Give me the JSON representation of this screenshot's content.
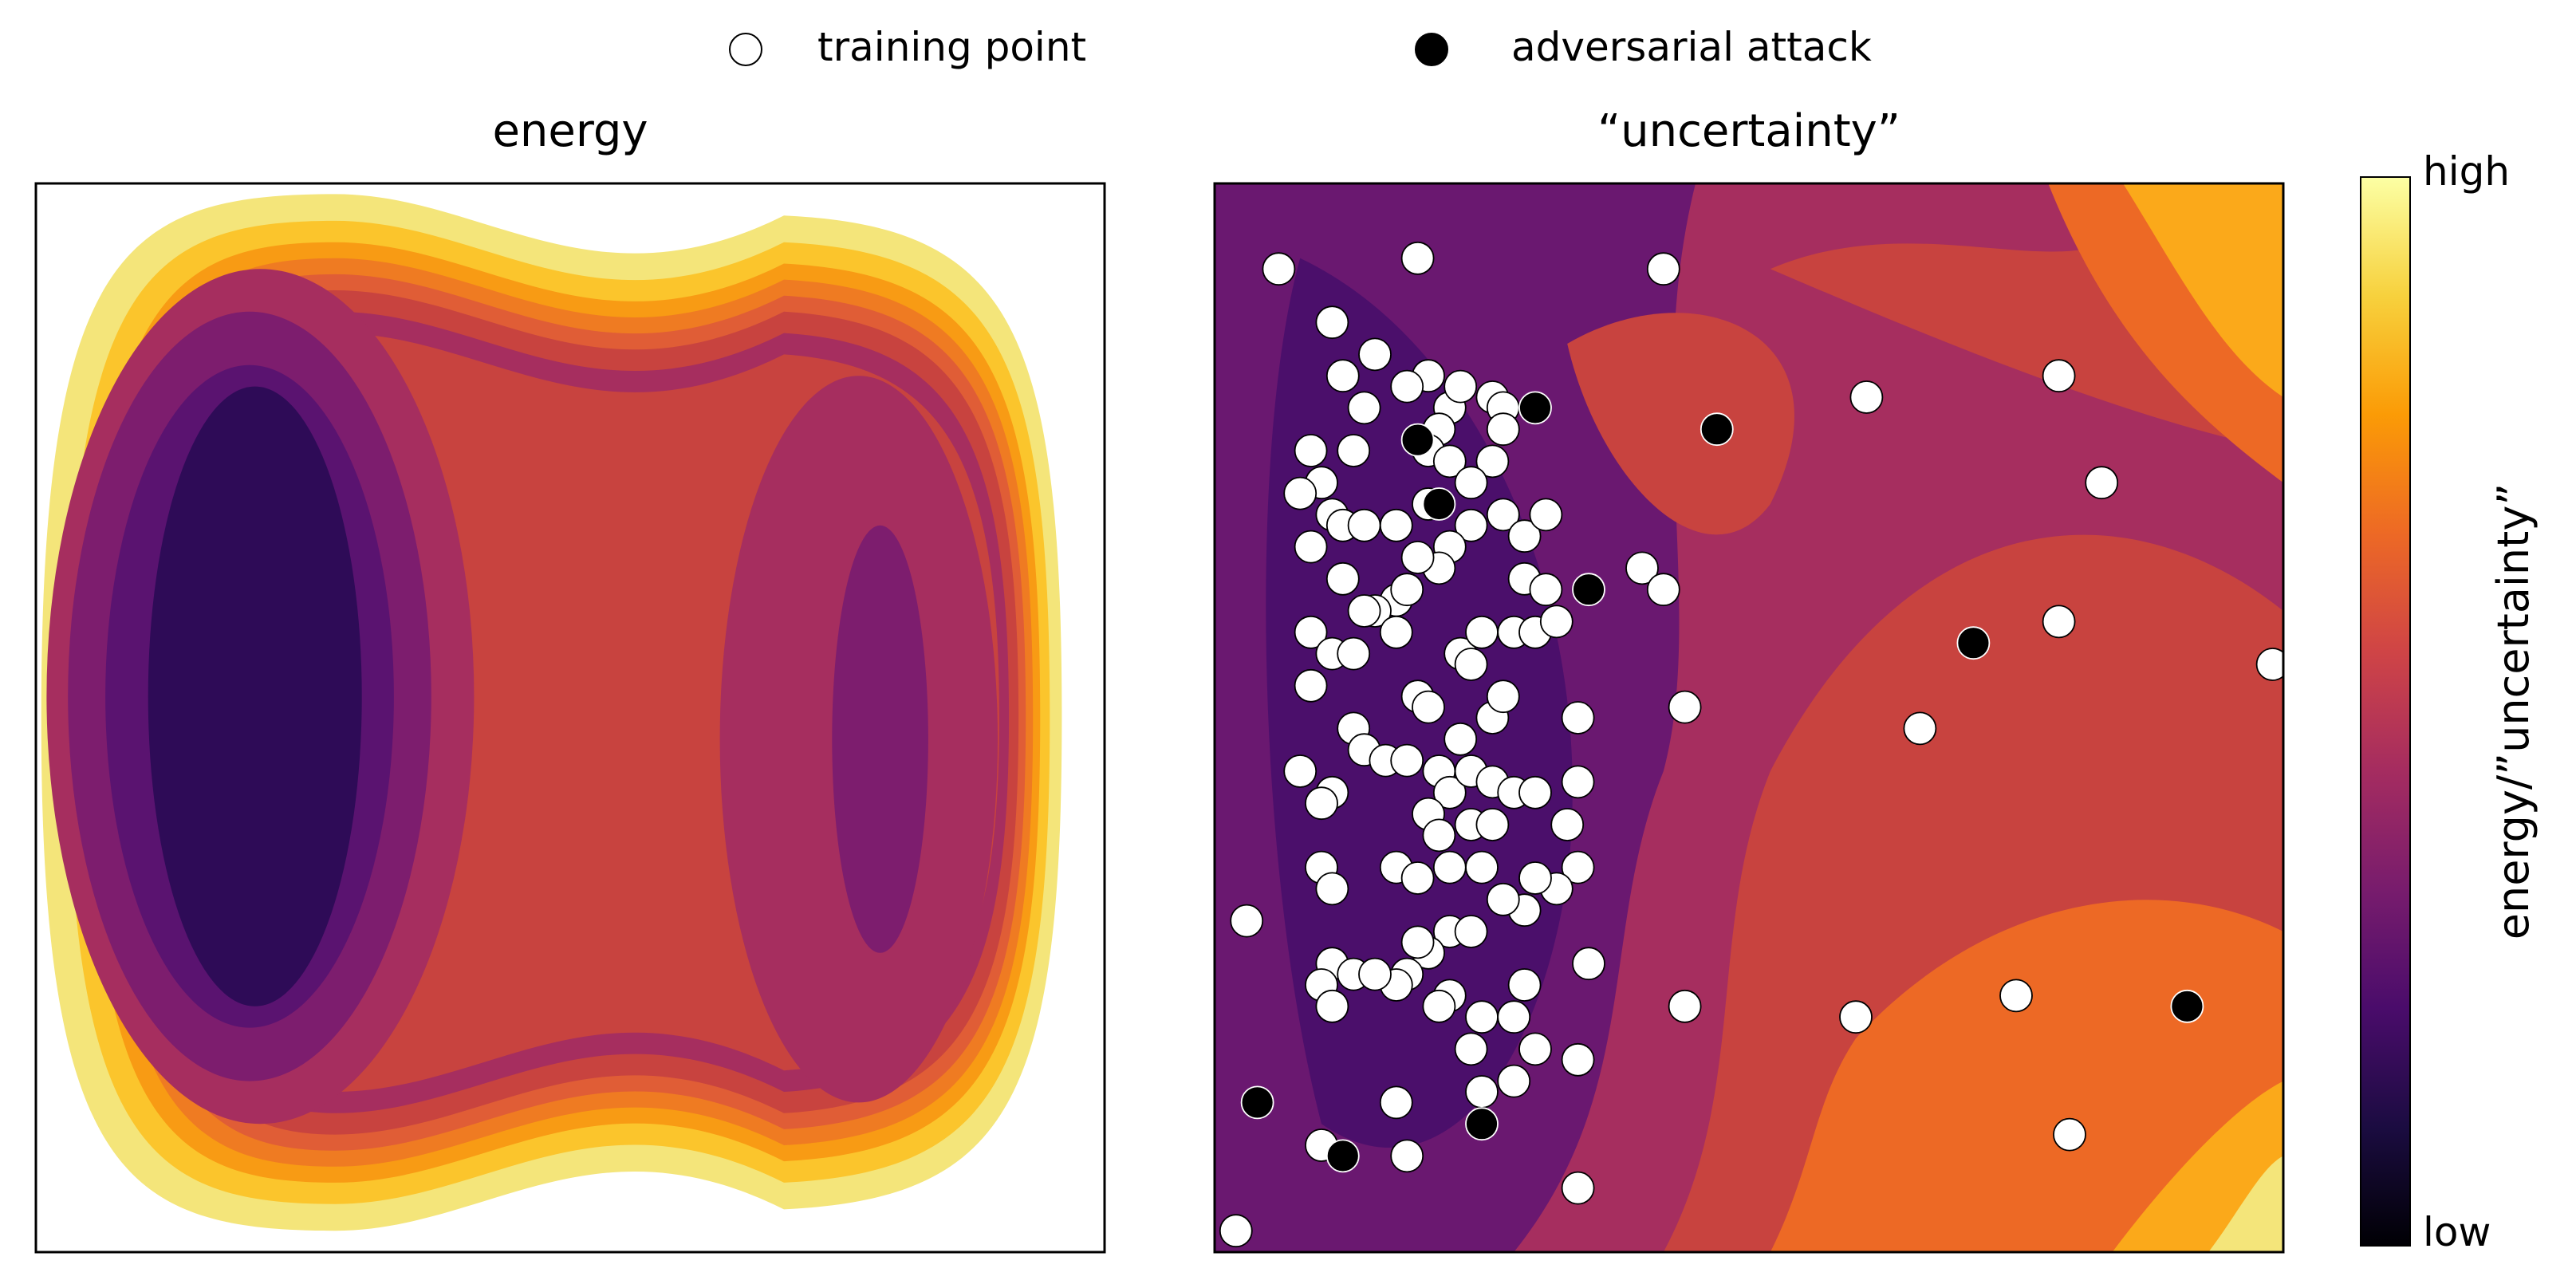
{
  "legend": {
    "items": [
      {
        "label": "training point",
        "marker": "open-circle",
        "color": "#ffffff"
      },
      {
        "label": "adversarial attack",
        "marker": "filled-circle",
        "color": "#000000"
      }
    ]
  },
  "colorbar": {
    "label": "energy/”uncertainty”",
    "high_label": "high",
    "low_label": "low",
    "colormap": "inferno",
    "stops": [
      "#000004",
      "#1b0c41",
      "#4a0c6b",
      "#781c6d",
      "#a52c60",
      "#cf4446",
      "#ed6925",
      "#fb9b06",
      "#f7d13d",
      "#fcffa4"
    ]
  },
  "chart_data": [
    {
      "type": "heatmap",
      "title": "energy",
      "description_kind": "filled contour",
      "xlim": [
        0,
        1
      ],
      "ylim": [
        0,
        1
      ],
      "grid": false,
      "ticks": "none",
      "contour_levels": 9,
      "regions": [
        {
          "name": "deep basin (left)",
          "level": "lowest",
          "center": [
            0.18,
            0.48
          ]
        },
        {
          "name": "shallow basin (right)",
          "level": "low",
          "center": [
            0.78,
            0.52
          ]
        },
        {
          "name": "saddle",
          "level": "medium",
          "center": [
            0.5,
            0.5
          ]
        }
      ]
    },
    {
      "type": "scatter",
      "title": "“uncertainty”",
      "description_kind": "filled contour with scatter overlay",
      "xlim": [
        0,
        1
      ],
      "ylim": [
        0,
        1
      ],
      "grid": false,
      "ticks": "none",
      "series": [
        {
          "name": "training point",
          "marker": "open-circle",
          "points": [
            [
              0.06,
              0.92
            ],
            [
              0.19,
              0.93
            ],
            [
              0.42,
              0.92
            ],
            [
              0.61,
              0.8
            ],
            [
              0.79,
              0.82
            ],
            [
              0.83,
              0.72
            ],
            [
              0.11,
              0.87
            ],
            [
              0.15,
              0.84
            ],
            [
              0.12,
              0.82
            ],
            [
              0.14,
              0.79
            ],
            [
              0.09,
              0.75
            ],
            [
              0.1,
              0.72
            ],
            [
              0.13,
              0.75
            ],
            [
              0.08,
              0.71
            ],
            [
              0.11,
              0.69
            ],
            [
              0.09,
              0.66
            ],
            [
              0.12,
              0.68
            ],
            [
              0.14,
              0.68
            ],
            [
              0.2,
              0.82
            ],
            [
              0.22,
              0.79
            ],
            [
              0.23,
              0.81
            ],
            [
              0.26,
              0.8
            ],
            [
              0.27,
              0.79
            ],
            [
              0.18,
              0.81
            ],
            [
              0.21,
              0.77
            ],
            [
              0.2,
              0.75
            ],
            [
              0.22,
              0.74
            ],
            [
              0.27,
              0.77
            ],
            [
              0.26,
              0.74
            ],
            [
              0.24,
              0.72
            ],
            [
              0.27,
              0.69
            ],
            [
              0.29,
              0.67
            ],
            [
              0.31,
              0.69
            ],
            [
              0.2,
              0.7
            ],
            [
              0.17,
              0.68
            ],
            [
              0.24,
              0.68
            ],
            [
              0.22,
              0.66
            ],
            [
              0.21,
              0.64
            ],
            [
              0.19,
              0.65
            ],
            [
              0.17,
              0.61
            ],
            [
              0.12,
              0.63
            ],
            [
              0.09,
              0.58
            ],
            [
              0.11,
              0.56
            ],
            [
              0.13,
              0.56
            ],
            [
              0.09,
              0.53
            ],
            [
              0.15,
              0.6
            ],
            [
              0.17,
              0.58
            ],
            [
              0.18,
              0.62
            ],
            [
              0.14,
              0.6
            ],
            [
              0.29,
              0.63
            ],
            [
              0.31,
              0.62
            ],
            [
              0.19,
              0.52
            ],
            [
              0.2,
              0.51
            ],
            [
              0.23,
              0.56
            ],
            [
              0.25,
              0.58
            ],
            [
              0.28,
              0.58
            ],
            [
              0.24,
              0.55
            ],
            [
              0.26,
              0.5
            ],
            [
              0.27,
              0.52
            ],
            [
              0.23,
              0.48
            ],
            [
              0.21,
              0.45
            ],
            [
              0.22,
              0.43
            ],
            [
              0.24,
              0.45
            ],
            [
              0.26,
              0.44
            ],
            [
              0.28,
              0.43
            ],
            [
              0.3,
              0.43
            ],
            [
              0.34,
              0.5
            ],
            [
              0.34,
              0.44
            ],
            [
              0.3,
              0.58
            ],
            [
              0.32,
              0.59
            ],
            [
              0.13,
              0.49
            ],
            [
              0.14,
              0.47
            ],
            [
              0.16,
              0.46
            ],
            [
              0.08,
              0.45
            ],
            [
              0.11,
              0.43
            ],
            [
              0.1,
              0.42
            ],
            [
              0.18,
              0.46
            ],
            [
              0.2,
              0.41
            ],
            [
              0.24,
              0.4
            ],
            [
              0.21,
              0.39
            ],
            [
              0.26,
              0.4
            ],
            [
              0.33,
              0.4
            ],
            [
              0.34,
              0.36
            ],
            [
              0.32,
              0.34
            ],
            [
              0.3,
              0.35
            ],
            [
              0.29,
              0.32
            ],
            [
              0.27,
              0.33
            ],
            [
              0.25,
              0.36
            ],
            [
              0.22,
              0.36
            ],
            [
              0.17,
              0.36
            ],
            [
              0.19,
              0.35
            ],
            [
              0.1,
              0.36
            ],
            [
              0.11,
              0.34
            ],
            [
              0.22,
              0.3
            ],
            [
              0.24,
              0.3
            ],
            [
              0.2,
              0.28
            ],
            [
              0.19,
              0.29
            ],
            [
              0.18,
              0.26
            ],
            [
              0.17,
              0.25
            ],
            [
              0.11,
              0.27
            ],
            [
              0.1,
              0.25
            ],
            [
              0.11,
              0.23
            ],
            [
              0.13,
              0.26
            ],
            [
              0.15,
              0.26
            ],
            [
              0.22,
              0.24
            ],
            [
              0.25,
              0.22
            ],
            [
              0.28,
              0.22
            ],
            [
              0.29,
              0.25
            ],
            [
              0.3,
              0.19
            ],
            [
              0.28,
              0.16
            ],
            [
              0.24,
              0.19
            ],
            [
              0.21,
              0.23
            ],
            [
              0.25,
              0.15
            ],
            [
              0.17,
              0.14
            ],
            [
              0.34,
              0.18
            ],
            [
              0.35,
              0.27
            ],
            [
              0.18,
              0.09
            ],
            [
              0.1,
              0.1
            ],
            [
              0.03,
              0.31
            ],
            [
              0.02,
              0.02
            ],
            [
              0.34,
              0.06
            ],
            [
              0.44,
              0.23
            ],
            [
              0.6,
              0.22
            ],
            [
              0.75,
              0.24
            ],
            [
              0.4,
              0.64
            ],
            [
              0.42,
              0.62
            ],
            [
              0.44,
              0.51
            ],
            [
              0.66,
              0.49
            ],
            [
              0.79,
              0.59
            ],
            [
              0.8,
              0.11
            ],
            [
              0.99,
              0.55
            ]
          ]
        },
        {
          "name": "adversarial attack",
          "marker": "filled-circle",
          "points": [
            [
              0.3,
              0.79
            ],
            [
              0.19,
              0.76
            ],
            [
              0.21,
              0.7
            ],
            [
              0.47,
              0.77
            ],
            [
              0.35,
              0.62
            ],
            [
              0.71,
              0.57
            ],
            [
              0.04,
              0.14
            ],
            [
              0.12,
              0.09
            ],
            [
              0.25,
              0.12
            ],
            [
              0.91,
              0.23
            ]
          ]
        }
      ],
      "regions": [
        {
          "name": "low uncertainty band",
          "level": "low",
          "note": "dark purple band around training data"
        },
        {
          "name": "high uncertainty corners",
          "level": "high",
          "note": "orange/yellow at right side"
        }
      ]
    }
  ]
}
